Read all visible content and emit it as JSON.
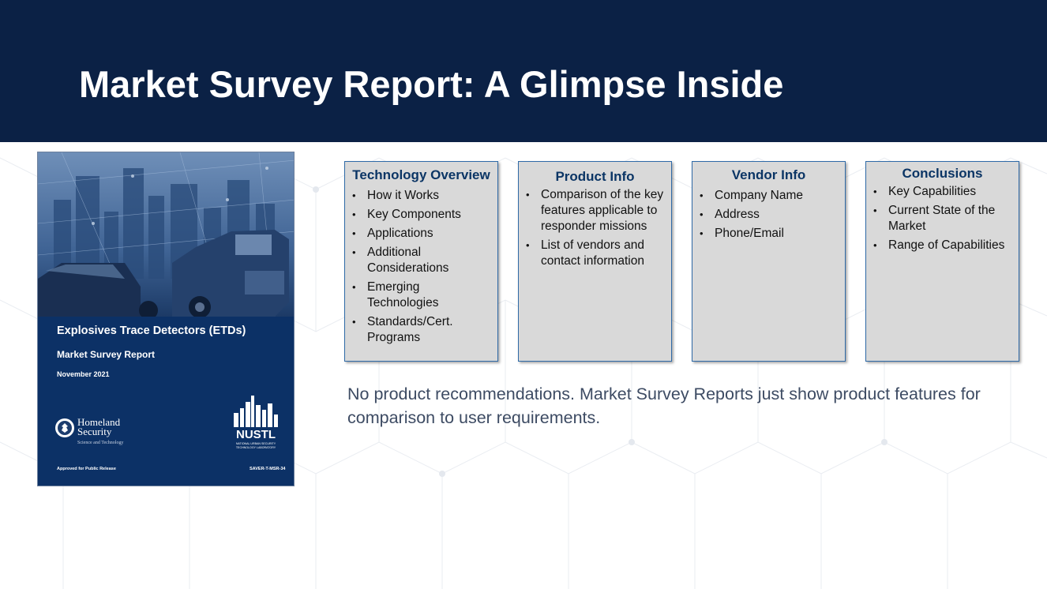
{
  "slide": {
    "title": "Market Survey Report: A Glimpse Inside",
    "note": "No product recommendations. Market Survey Reports just show product features for comparison to user requirements."
  },
  "cover": {
    "title": "Explosives Trace Detectors (ETDs)",
    "subtitle": "Market Survey Report",
    "date": "November 2021",
    "agency_name_line1": "Homeland",
    "agency_name_line2": "Security",
    "agency_tagline": "Science and Technology",
    "lab_logo_text": "NUSTL",
    "lab_name_line1": "NATIONAL URBAN SECURITY",
    "lab_name_line2": "TECHNOLOGY LABORATORY",
    "release": "Approved for Public Release",
    "code": "SAVER-T-MSR-34"
  },
  "boxes": [
    {
      "title": "Technology Overview",
      "items": [
        "How it Works",
        "Key Components",
        "Applications",
        "Additional Considerations",
        "Emerging Technologies",
        "Standards/Cert. Programs"
      ]
    },
    {
      "title": "Product Info",
      "items": [
        "Comparison of the key features applicable to responder missions",
        "List of vendors and contact information"
      ]
    },
    {
      "title": "Vendor Info",
      "items": [
        "Company Name",
        "Address",
        "Phone/Email"
      ]
    },
    {
      "title": "Conclusions",
      "items": [
        "Key Capabilities",
        "Current State of the Market",
        "Range of Capabilities"
      ]
    }
  ],
  "colors": {
    "header": "#0b2145",
    "cover": "#0c3166",
    "box_fill": "#d9d9d9",
    "box_border": "#2f6aa7",
    "box_title": "#0b3565",
    "note_text": "#3d4b63"
  }
}
